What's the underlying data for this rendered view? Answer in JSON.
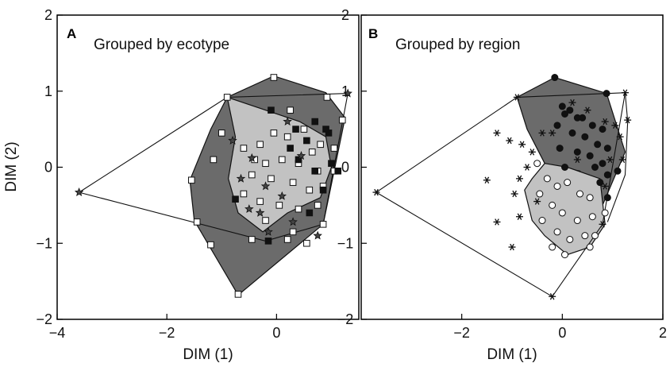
{
  "chart_data": [
    {
      "type": "scatter",
      "panel_label": "A",
      "title": "Grouped by ecotype",
      "xlabel": "DIM (1)",
      "ylabel": "DIM (2)",
      "xlim": [
        -4,
        1.5
      ],
      "ylim": [
        -2,
        2
      ],
      "x_ticks": [
        "−4",
        "−2",
        "0"
      ],
      "y_ticks": [
        "2",
        "1",
        "0",
        "−1",
        "−2"
      ],
      "grid": false,
      "legend": "none",
      "colors": {
        "dark_hull": "#6b6b6b",
        "light_hull": "#c2c2c2",
        "line": "#111111"
      },
      "hulls": [
        {
          "fill": "dark",
          "points": [
            [
              -0.9,
              0.92
            ],
            [
              -0.05,
              1.2
            ],
            [
              0.9,
              0.98
            ],
            [
              1.25,
              0.65
            ],
            [
              0.85,
              -0.75
            ],
            [
              -0.7,
              -1.68
            ],
            [
              -1.5,
              -0.7
            ],
            [
              -1.58,
              -0.17
            ],
            [
              -1.2,
              0.5
            ]
          ]
        },
        {
          "fill": "light",
          "points": [
            [
              -0.9,
              0.92
            ],
            [
              0.42,
              0.6
            ],
            [
              0.9,
              0.4
            ],
            [
              1.0,
              0.0
            ],
            [
              0.8,
              -0.4
            ],
            [
              0.2,
              -0.6
            ],
            [
              -0.25,
              -0.85
            ],
            [
              -0.7,
              -0.6
            ],
            [
              -0.88,
              -0.15
            ],
            [
              -0.75,
              0.4
            ]
          ]
        }
      ],
      "lines": [
        [
          [
            -3.6,
            -0.33
          ],
          [
            -0.9,
            0.92
          ],
          [
            1.3,
            0.97
          ],
          [
            0.85,
            -0.75
          ],
          [
            -0.2,
            -0.97
          ],
          [
            -3.6,
            -0.33
          ]
        ]
      ],
      "series": [
        {
          "marker": "open-square",
          "points": [
            [
              -0.05,
              1.18
            ],
            [
              -0.9,
              0.92
            ],
            [
              0.92,
              0.92
            ],
            [
              1.2,
              0.62
            ],
            [
              0.25,
              0.75
            ],
            [
              0.5,
              0.5
            ],
            [
              0.8,
              0.3
            ],
            [
              1.05,
              0.25
            ],
            [
              -0.05,
              0.45
            ],
            [
              0.2,
              0.4
            ],
            [
              0.65,
              0.2
            ],
            [
              -0.3,
              0.3
            ],
            [
              -0.4,
              0.1
            ],
            [
              -0.6,
              0.25
            ],
            [
              -0.2,
              0.05
            ],
            [
              0.1,
              0.1
            ],
            [
              0.4,
              0.05
            ],
            [
              0.75,
              -0.05
            ],
            [
              1.05,
              -0.05
            ],
            [
              -0.45,
              -0.1
            ],
            [
              -0.1,
              -0.15
            ],
            [
              0.3,
              -0.2
            ],
            [
              0.6,
              -0.3
            ],
            [
              0.85,
              -0.25
            ],
            [
              -0.3,
              -0.45
            ],
            [
              0.05,
              -0.5
            ],
            [
              0.4,
              -0.55
            ],
            [
              0.75,
              -0.5
            ],
            [
              -0.6,
              -0.35
            ],
            [
              -0.2,
              -0.7
            ],
            [
              0.3,
              -0.85
            ],
            [
              0.85,
              -0.75
            ],
            [
              -0.45,
              -0.95
            ],
            [
              0.2,
              -0.95
            ],
            [
              0.55,
              -1.0
            ],
            [
              -1.55,
              -0.17
            ],
            [
              -1.45,
              -0.72
            ],
            [
              -1.2,
              -1.02
            ],
            [
              -0.7,
              -1.67
            ],
            [
              -1.0,
              0.45
            ],
            [
              -1.15,
              0.1
            ]
          ]
        },
        {
          "marker": "filled-square",
          "points": [
            [
              -0.1,
              0.75
            ],
            [
              0.35,
              0.5
            ],
            [
              0.7,
              0.6
            ],
            [
              0.95,
              0.45
            ],
            [
              0.55,
              0.35
            ],
            [
              0.25,
              0.25
            ],
            [
              0.7,
              -0.05
            ],
            [
              0.4,
              0.1
            ],
            [
              1.0,
              0.05
            ],
            [
              0.85,
              -0.3
            ],
            [
              0.6,
              -0.6
            ],
            [
              -0.75,
              -0.42
            ],
            [
              -0.15,
              -0.97
            ],
            [
              1.12,
              -0.05
            ],
            [
              0.9,
              0.5
            ]
          ]
        },
        {
          "marker": "star",
          "points": [
            [
              1.3,
              0.97
            ],
            [
              -3.6,
              -0.33
            ],
            [
              -0.8,
              0.35
            ],
            [
              -0.45,
              0.12
            ],
            [
              -0.65,
              -0.15
            ],
            [
              -0.2,
              -0.25
            ],
            [
              0.2,
              0.6
            ],
            [
              0.45,
              0.15
            ],
            [
              -0.5,
              -0.55
            ],
            [
              0.1,
              -0.38
            ],
            [
              -0.3,
              -0.6
            ],
            [
              0.3,
              -0.72
            ],
            [
              0.75,
              -0.9
            ],
            [
              -0.15,
              -0.85
            ]
          ]
        }
      ]
    },
    {
      "type": "scatter",
      "panel_label": "B",
      "title": "Grouped by region",
      "xlabel": "DIM (1)",
      "ylabel": "",
      "xlim": [
        -4,
        2
      ],
      "ylim": [
        -2,
        2
      ],
      "x_ticks": [
        "−2",
        "0",
        "2"
      ],
      "y_ticks": [
        "2",
        "1",
        "0",
        "−1",
        "−2"
      ],
      "grid": false,
      "legend": "none",
      "colors": {
        "dark_hull": "#6b6b6b",
        "light_hull": "#c2c2c2",
        "line": "#111111"
      },
      "hulls": [
        {
          "fill": "dark",
          "points": [
            [
              -0.9,
              0.92
            ],
            [
              -0.15,
              1.18
            ],
            [
              0.88,
              0.97
            ],
            [
              1.25,
              0.2
            ],
            [
              0.8,
              -0.5
            ],
            [
              0.35,
              -0.05
            ],
            [
              -0.05,
              0.0
            ],
            [
              -0.35,
              0.05
            ],
            [
              -0.7,
              0.5
            ]
          ]
        },
        {
          "fill": "light",
          "points": [
            [
              -0.35,
              0.05
            ],
            [
              0.1,
              0.0
            ],
            [
              0.75,
              -0.15
            ],
            [
              0.85,
              -0.75
            ],
            [
              0.55,
              -1.05
            ],
            [
              0.1,
              -1.15
            ],
            [
              -0.35,
              -0.9
            ],
            [
              -0.6,
              -0.7
            ],
            [
              -0.75,
              -0.3
            ],
            [
              -0.6,
              -0.15
            ]
          ]
        }
      ],
      "lines": [
        [
          [
            -3.7,
            -0.33
          ],
          [
            -0.9,
            0.92
          ],
          [
            1.25,
            0.98
          ],
          [
            0.8,
            -0.75
          ],
          [
            -0.2,
            -1.7
          ],
          [
            -3.7,
            -0.33
          ]
        ],
        [
          [
            1.25,
            0.98
          ],
          [
            1.3,
            0.6
          ],
          [
            1.25,
            -0.1
          ],
          [
            0.9,
            -0.72
          ]
        ]
      ],
      "series": [
        {
          "marker": "filled-circle",
          "points": [
            [
              -0.15,
              1.18
            ],
            [
              0.0,
              0.8
            ],
            [
              0.15,
              0.75
            ],
            [
              0.4,
              0.65
            ],
            [
              0.6,
              0.55
            ],
            [
              0.8,
              0.5
            ],
            [
              0.88,
              0.97
            ],
            [
              -0.1,
              0.55
            ],
            [
              0.2,
              0.45
            ],
            [
              0.45,
              0.4
            ],
            [
              0.7,
              0.3
            ],
            [
              0.9,
              0.25
            ],
            [
              0.3,
              0.2
            ],
            [
              0.55,
              0.15
            ],
            [
              -0.05,
              0.25
            ],
            [
              0.8,
              0.05
            ],
            [
              0.05,
              0.0
            ],
            [
              0.9,
              -0.1
            ],
            [
              1.1,
              -0.05
            ],
            [
              0.65,
              0.0
            ],
            [
              0.3,
              0.65
            ],
            [
              0.05,
              0.7
            ],
            [
              0.75,
              -0.2
            ],
            [
              0.9,
              -0.4
            ]
          ]
        },
        {
          "marker": "open-circle",
          "points": [
            [
              -0.5,
              0.05
            ],
            [
              -0.3,
              -0.15
            ],
            [
              -0.1,
              -0.25
            ],
            [
              0.1,
              -0.2
            ],
            [
              0.35,
              -0.35
            ],
            [
              0.55,
              -0.4
            ],
            [
              -0.45,
              -0.35
            ],
            [
              -0.2,
              -0.5
            ],
            [
              0.0,
              -0.6
            ],
            [
              0.3,
              -0.7
            ],
            [
              0.6,
              -0.65
            ],
            [
              -0.4,
              -0.7
            ],
            [
              -0.1,
              -0.85
            ],
            [
              0.15,
              -0.95
            ],
            [
              0.45,
              -0.9
            ],
            [
              -0.2,
              -1.05
            ],
            [
              0.05,
              -1.15
            ],
            [
              0.55,
              -1.05
            ],
            [
              0.85,
              -0.6
            ],
            [
              0.65,
              -0.9
            ]
          ]
        },
        {
          "marker": "asterisk",
          "points": [
            [
              -0.9,
              0.92
            ],
            [
              -3.7,
              -0.33
            ],
            [
              -1.5,
              -0.17
            ],
            [
              -1.3,
              0.45
            ],
            [
              -1.05,
              0.35
            ],
            [
              -0.8,
              0.3
            ],
            [
              -0.6,
              0.2
            ],
            [
              -0.4,
              0.45
            ],
            [
              -0.7,
              0.0
            ],
            [
              -0.85,
              -0.15
            ],
            [
              -0.95,
              -0.35
            ],
            [
              -0.5,
              -0.45
            ],
            [
              -0.85,
              -0.65
            ],
            [
              -1.3,
              -0.72
            ],
            [
              -1.0,
              -1.05
            ],
            [
              -0.2,
              -1.7
            ],
            [
              -0.2,
              0.45
            ],
            [
              0.2,
              0.85
            ],
            [
              0.5,
              0.75
            ],
            [
              0.85,
              0.6
            ],
            [
              1.05,
              0.55
            ],
            [
              1.15,
              0.4
            ],
            [
              0.95,
              0.1
            ],
            [
              1.25,
              0.98
            ],
            [
              1.3,
              0.62
            ],
            [
              1.2,
              0.1
            ],
            [
              0.85,
              -0.25
            ],
            [
              0.8,
              -0.75
            ],
            [
              0.3,
              0.1
            ]
          ]
        }
      ]
    }
  ]
}
